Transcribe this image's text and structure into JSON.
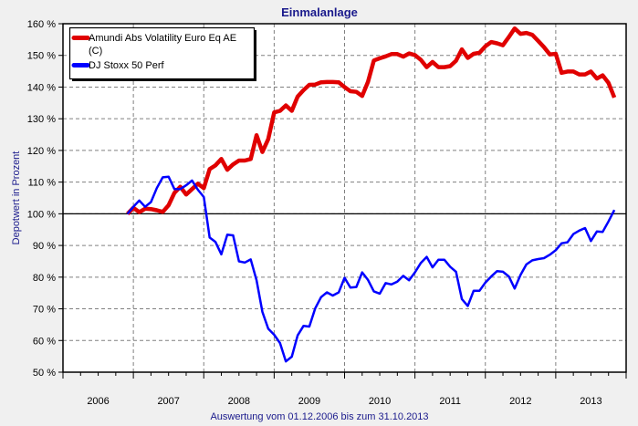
{
  "chart_data": {
    "type": "line",
    "title": "Einmalanlage",
    "ylabel": "Depotwert in Prozent",
    "footnote": "Auswertung vom 01.12.2006 bis zum 31.10.2013",
    "ylim": [
      50,
      160
    ],
    "yticks": [
      50,
      60,
      70,
      80,
      90,
      100,
      110,
      120,
      130,
      140,
      150,
      160
    ],
    "ytick_suffix": " %",
    "xlim": [
      "2006-01",
      "2014-01"
    ],
    "xtick_labels": [
      "2006",
      "2007",
      "2008",
      "2009",
      "2010",
      "2011",
      "2012",
      "2013"
    ],
    "reference_line": 100,
    "grid": true,
    "legend_position": "top-left",
    "start": "2006-12",
    "frequency": "monthly",
    "series": [
      {
        "name": "Amundi Abs Volatility Euro Eq AE (C)",
        "color": "#e00000",
        "values": [
          100,
          101.9,
          100.5,
          101.6,
          101.5,
          101.1,
          100.6,
          102.7,
          106.6,
          108.5,
          106.1,
          107.8,
          109.5,
          108.1,
          114.1,
          115.3,
          117.3,
          113.9,
          115.6,
          116.8,
          116.8,
          117.3,
          124.8,
          119.5,
          123.6,
          132.0,
          132.5,
          134.2,
          132.5,
          137.0,
          139.0,
          140.7,
          140.8,
          141.5,
          141.6,
          141.6,
          141.5,
          140.0,
          138.7,
          138.5,
          137.2,
          141.7,
          148.4,
          149.1,
          149.7,
          150.4,
          150.4,
          149.6,
          150.6,
          150.1,
          148.6,
          146.3,
          147.9,
          146.3,
          146.3,
          146.6,
          148.3,
          151.9,
          149.2,
          150.5,
          150.8,
          152.9,
          154.2,
          153.8,
          153.2,
          155.8,
          158.5,
          156.8,
          157.1,
          156.5,
          154.6,
          152.6,
          150.3,
          150.5,
          144.5,
          144.9,
          144.9,
          144.0,
          144.0,
          144.9,
          142.7,
          143.7,
          141.3,
          136.7
        ]
      },
      {
        "name": "DJ Stoxx 50 Perf",
        "color": "#0000ff",
        "values": [
          100,
          102.2,
          104.2,
          102.2,
          103.7,
          108.1,
          111.5,
          111.7,
          107.8,
          107.8,
          109.0,
          110.5,
          107.6,
          105.3,
          92.5,
          91.1,
          87.2,
          93.4,
          93.2,
          85.0,
          84.6,
          85.6,
          79.0,
          69.0,
          63.7,
          61.8,
          59.2,
          53.4,
          54.9,
          61.6,
          64.6,
          64.4,
          70.2,
          73.7,
          75.2,
          74.2,
          75.2,
          79.8,
          76.7,
          76.9,
          81.5,
          79.1,
          75.5,
          74.8,
          78.1,
          77.7,
          78.6,
          80.4,
          79.0,
          81.5,
          84.5,
          86.4,
          83.1,
          85.5,
          85.5,
          83.3,
          81.7,
          73.1,
          70.9,
          75.7,
          75.7,
          78.3,
          80.2,
          81.9,
          81.7,
          80.2,
          76.4,
          80.7,
          84.0,
          85.3,
          85.7,
          86.0,
          87.1,
          88.5,
          90.7,
          91.0,
          93.6,
          94.7,
          95.5,
          91.4,
          94.4,
          94.3,
          97.6,
          101.2
        ]
      }
    ]
  }
}
